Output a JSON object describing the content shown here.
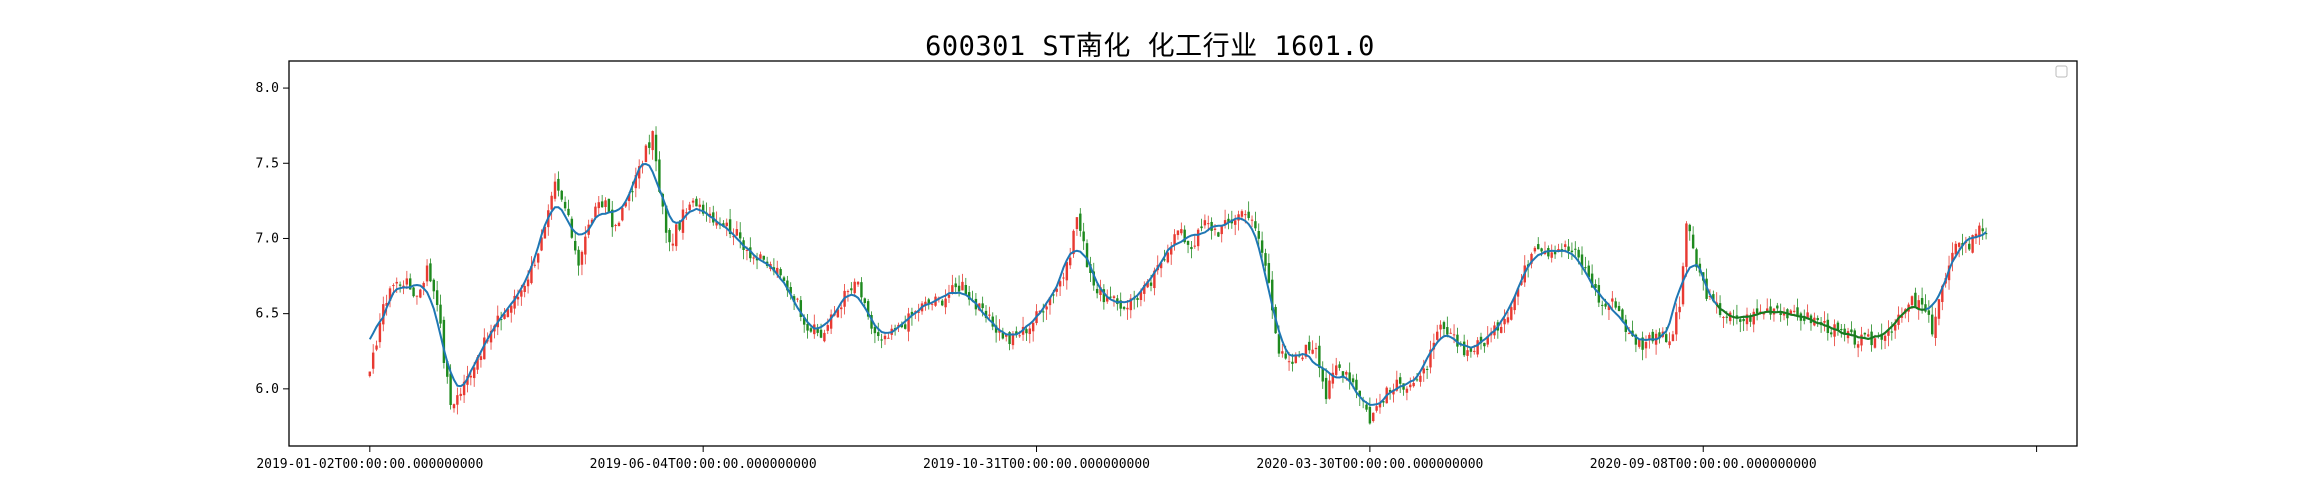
{
  "chart_data": {
    "type": "candlestick",
    "title": "600301 ST南化 化工行业 1601.0",
    "xlabel": "",
    "ylabel": "",
    "ylim": [
      5.62,
      8.18
    ],
    "y_ticks": [
      6.0,
      6.5,
      7.0,
      7.5,
      8.0
    ],
    "y_tick_labels": [
      "6.0",
      "6.5",
      "7.0",
      "7.5",
      "8.0"
    ],
    "x_ticks": [
      0,
      99,
      198,
      297,
      396,
      495
    ],
    "x_tick_labels": [
      "2019-01-02T00:00:00.000000000",
      "2019-06-04T00:00:00.000000000",
      "2019-10-31T00:00:00.000000000",
      "2020-03-30T00:00:00.000000000",
      "2020-09-08T00:00:00.000000000",
      ""
    ],
    "legend": "top-right, empty",
    "grid": false,
    "colors": {
      "up": "#e83a32",
      "down": "#1f8a1f",
      "ma_line": "#1f77b4",
      "ma_line_2": "#1a7a1a"
    },
    "close_keypoints": [
      [
        0,
        6.08
      ],
      [
        3,
        6.45
      ],
      [
        6,
        6.68
      ],
      [
        10,
        6.72
      ],
      [
        14,
        6.62
      ],
      [
        17,
        6.8
      ],
      [
        20,
        6.6
      ],
      [
        22,
        6.2
      ],
      [
        24,
        5.9
      ],
      [
        27,
        5.98
      ],
      [
        32,
        6.22
      ],
      [
        38,
        6.45
      ],
      [
        44,
        6.62
      ],
      [
        48,
        6.8
      ],
      [
        52,
        7.05
      ],
      [
        55,
        7.35
      ],
      [
        58,
        7.2
      ],
      [
        62,
        6.85
      ],
      [
        66,
        7.15
      ],
      [
        70,
        7.25
      ],
      [
        73,
        7.05
      ],
      [
        77,
        7.3
      ],
      [
        80,
        7.45
      ],
      [
        84,
        7.7
      ],
      [
        86,
        7.3
      ],
      [
        89,
        6.95
      ],
      [
        93,
        7.15
      ],
      [
        97,
        7.25
      ],
      [
        102,
        7.15
      ],
      [
        108,
        7.05
      ],
      [
        114,
        6.88
      ],
      [
        120,
        6.8
      ],
      [
        126,
        6.62
      ],
      [
        130,
        6.42
      ],
      [
        134,
        6.35
      ],
      [
        138,
        6.5
      ],
      [
        141,
        6.62
      ],
      [
        145,
        6.7
      ],
      [
        148,
        6.45
      ],
      [
        152,
        6.3
      ],
      [
        158,
        6.42
      ],
      [
        164,
        6.55
      ],
      [
        170,
        6.6
      ],
      [
        176,
        6.7
      ],
      [
        180,
        6.55
      ],
      [
        184,
        6.45
      ],
      [
        190,
        6.32
      ],
      [
        196,
        6.42
      ],
      [
        200,
        6.55
      ],
      [
        204,
        6.68
      ],
      [
        207,
        6.8
      ],
      [
        210,
        7.15
      ],
      [
        213,
        6.85
      ],
      [
        216,
        6.65
      ],
      [
        220,
        6.58
      ],
      [
        224,
        6.55
      ],
      [
        228,
        6.62
      ],
      [
        232,
        6.7
      ],
      [
        236,
        6.9
      ],
      [
        240,
        7.05
      ],
      [
        244,
        6.95
      ],
      [
        248,
        7.1
      ],
      [
        252,
        7.05
      ],
      [
        256,
        7.12
      ],
      [
        260,
        7.2
      ],
      [
        264,
        7.0
      ],
      [
        267,
        6.72
      ],
      [
        270,
        6.25
      ],
      [
        273,
        6.15
      ],
      [
        277,
        6.25
      ],
      [
        281,
        6.3
      ],
      [
        284,
        5.95
      ],
      [
        287,
        6.15
      ],
      [
        290,
        6.12
      ],
      [
        294,
        5.98
      ],
      [
        297,
        5.8
      ],
      [
        301,
        5.95
      ],
      [
        305,
        6.02
      ],
      [
        309,
        6.05
      ],
      [
        312,
        6.05
      ],
      [
        315,
        6.22
      ],
      [
        318,
        6.4
      ],
      [
        322,
        6.32
      ],
      [
        326,
        6.25
      ],
      [
        330,
        6.3
      ],
      [
        334,
        6.38
      ],
      [
        338,
        6.52
      ],
      [
        342,
        6.72
      ],
      [
        346,
        6.98
      ],
      [
        350,
        6.92
      ],
      [
        354,
        6.95
      ],
      [
        358,
        6.9
      ],
      [
        362,
        6.75
      ],
      [
        366,
        6.55
      ],
      [
        370,
        6.58
      ],
      [
        374,
        6.35
      ],
      [
        378,
        6.3
      ],
      [
        382,
        6.38
      ],
      [
        386,
        6.3
      ],
      [
        389,
        6.55
      ],
      [
        391,
        7.1
      ],
      [
        394,
        6.82
      ],
      [
        398,
        6.58
      ],
      [
        402,
        6.5
      ],
      [
        406,
        6.45
      ],
      [
        410,
        6.48
      ],
      [
        414,
        6.52
      ],
      [
        418,
        6.55
      ],
      [
        422,
        6.48
      ],
      [
        426,
        6.48
      ],
      [
        430,
        6.45
      ],
      [
        434,
        6.4
      ],
      [
        438,
        6.35
      ],
      [
        442,
        6.32
      ],
      [
        446,
        6.32
      ],
      [
        450,
        6.38
      ],
      [
        454,
        6.45
      ],
      [
        458,
        6.58
      ],
      [
        461,
        6.55
      ],
      [
        464,
        6.4
      ],
      [
        466,
        6.6
      ],
      [
        469,
        6.8
      ],
      [
        472,
        7.0
      ],
      [
        475,
        6.95
      ],
      [
        478,
        7.1
      ],
      [
        480,
        7.05
      ]
    ],
    "x_domain": [
      -24,
      507
    ],
    "ma_green_range": [
      400,
      462
    ]
  }
}
